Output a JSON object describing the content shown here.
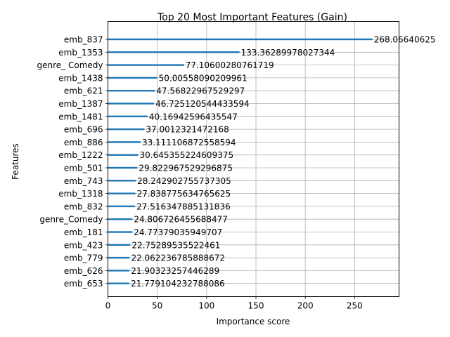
{
  "chart_data": {
    "type": "bar",
    "orientation": "horizontal",
    "title": "Top 20 Most Important Features (Gain)",
    "xlabel": "Importance score",
    "ylabel": "Features",
    "xlim": [
      0,
      295
    ],
    "xticks": [
      0,
      50,
      100,
      150,
      200,
      250
    ],
    "grid": true,
    "bar_color": "#1f77b4",
    "categories": [
      "emb_837",
      "emb_1353",
      "genre_ Comedy",
      "emb_1438",
      "emb_621",
      "emb_1387",
      "emb_1481",
      "emb_696",
      "emb_886",
      "emb_1222",
      "emb_501",
      "emb_743",
      "emb_1318",
      "emb_832",
      "genre_Comedy",
      "emb_181",
      "emb_423",
      "emb_779",
      "emb_626",
      "emb_653"
    ],
    "values": [
      268.06640625,
      133.36289978027344,
      77.10600280761719,
      50.00558090209961,
      47.56822967529297,
      46.725120544433594,
      40.16942596435547,
      37.0012321472168,
      33.111106872558594,
      30.645355224609375,
      29.822967529296875,
      28.242902755737305,
      27.838775634765625,
      27.516347885131836,
      24.806726455688477,
      24.77379035949707,
      22.75289535522461,
      22.062236785888672,
      21.90323257446289,
      21.779104232788086
    ],
    "value_labels": [
      "268.06640625",
      "133.36289978027344",
      "77.10600280761719",
      "50.00558090209961",
      "47.56822967529297",
      "46.725120544433594",
      "40.16942596435547",
      "37.0012321472168",
      "33.111106872558594",
      "30.645355224609375",
      "29.822967529296875",
      "28.242902755737305",
      "27.838775634765625",
      "27.516347885131836",
      "24.806726455688477",
      "24.77379035949707",
      "22.75289535522461",
      "22.062236785888672",
      "21.90323257446289",
      "21.779104232788086"
    ]
  }
}
